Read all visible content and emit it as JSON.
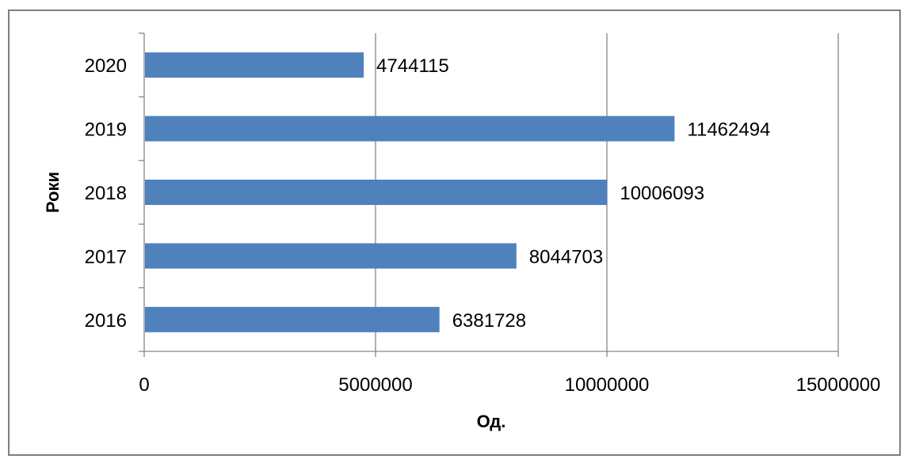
{
  "chart_data": {
    "type": "bar",
    "orientation": "horizontal",
    "categories": [
      "2016",
      "2017",
      "2018",
      "2019",
      "2020"
    ],
    "values": [
      6381728,
      8044703,
      10006093,
      11462494,
      4744115
    ],
    "data_labels": [
      "6381728",
      "8044703",
      "10006093",
      "11462494",
      "4744115"
    ],
    "xlabel": "Од.",
    "ylabel": "Роки",
    "xlim": [
      0,
      15000000
    ],
    "x_ticks": [
      0,
      5000000,
      10000000,
      15000000
    ],
    "x_tick_labels": [
      "0",
      "5000000",
      "10000000",
      "15000000"
    ],
    "grid": "vertical",
    "bar_color": "#4f81bd"
  }
}
